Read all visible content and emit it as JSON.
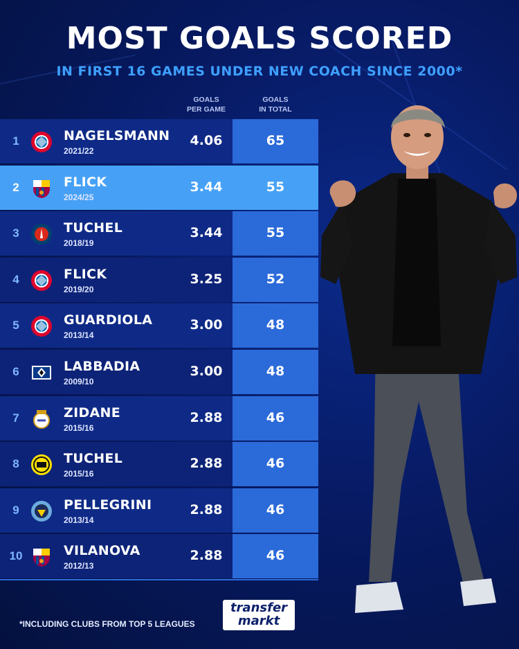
{
  "title": "MOST GOALS SCORED",
  "subtitle": "IN FIRST 16 GAMES UNDER NEW COACH SINCE 2000*",
  "columns": {
    "per_game_line1": "GOALS",
    "per_game_line2": "PER GAME",
    "total_line1": "GOALS",
    "total_line2": "IN TOTAL"
  },
  "footnote": "*INCLUDING CLUBS FROM TOP 5 LEAGUES",
  "brand": {
    "line1": "transfer",
    "line2": "markt"
  },
  "colors": {
    "background": "#071a63",
    "highlight": "#46a1f6",
    "total_cell": "#2b6ad9",
    "subtitle": "#3ea0ff"
  },
  "chart_data": {
    "type": "table",
    "title": "MOST GOALS SCORED",
    "subtitle": "IN FIRST 16 GAMES UNDER NEW COACH SINCE 2000*",
    "columns": [
      "GOALS PER GAME",
      "GOALS IN TOTAL"
    ],
    "highlighted_rank": "2",
    "rows": [
      {
        "rank": "1",
        "club_icon": "bayern-munich-crest-icon",
        "coach": "NAGELSMANN",
        "season": "2021/22",
        "per_game": "4.06",
        "total": "65"
      },
      {
        "rank": "2",
        "club_icon": "fc-barcelona-crest-icon",
        "coach": "FLICK",
        "season": "2024/25",
        "per_game": "3.44",
        "total": "55"
      },
      {
        "rank": "3",
        "club_icon": "psg-crest-icon",
        "coach": "TUCHEL",
        "season": "2018/19",
        "per_game": "3.44",
        "total": "55"
      },
      {
        "rank": "4",
        "club_icon": "bayern-munich-crest-icon",
        "coach": "FLICK",
        "season": "2019/20",
        "per_game": "3.25",
        "total": "52"
      },
      {
        "rank": "5",
        "club_icon": "bayern-munich-crest-icon",
        "coach": "GUARDIOLA",
        "season": "2013/14",
        "per_game": "3.00",
        "total": "48"
      },
      {
        "rank": "6",
        "club_icon": "hamburger-sv-crest-icon",
        "coach": "LABBADIA",
        "season": "2009/10",
        "per_game": "3.00",
        "total": "48"
      },
      {
        "rank": "7",
        "club_icon": "real-madrid-crest-icon",
        "coach": "ZIDANE",
        "season": "2015/16",
        "per_game": "2.88",
        "total": "46"
      },
      {
        "rank": "8",
        "club_icon": "borussia-dortmund-crest-icon",
        "coach": "TUCHEL",
        "season": "2015/16",
        "per_game": "2.88",
        "total": "46"
      },
      {
        "rank": "9",
        "club_icon": "manchester-city-crest-icon",
        "coach": "PELLEGRINI",
        "season": "2013/14",
        "per_game": "2.88",
        "total": "46"
      },
      {
        "rank": "10",
        "club_icon": "fc-barcelona-crest-icon",
        "coach": "VILANOVA",
        "season": "2012/13",
        "per_game": "2.88",
        "total": "46"
      }
    ]
  }
}
